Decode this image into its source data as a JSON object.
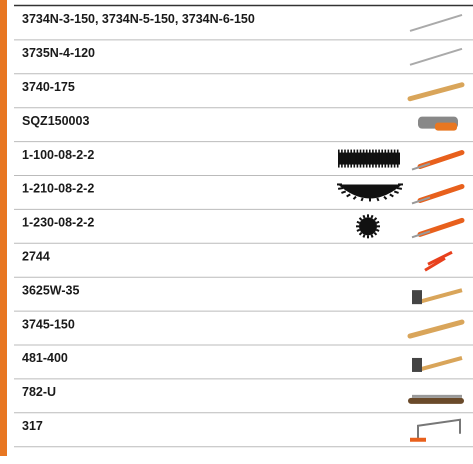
{
  "table": {
    "rows": [
      [
        "3734N-3-150, 3734N-5-150, 3734N-6-150"
      ],
      [
        "3735N-4-120"
      ],
      [
        "3740-175"
      ],
      [
        "SQZ150003"
      ],
      [
        "1-100-08-2-2"
      ],
      [
        "1-210-08-2-2"
      ],
      [
        "1-230-08-2-2"
      ],
      [
        "2744"
      ],
      [
        "3625W-35"
      ],
      [
        "3745-150"
      ],
      [
        "481-400"
      ],
      [
        "782-U"
      ],
      [
        "317"
      ]
    ]
  }
}
